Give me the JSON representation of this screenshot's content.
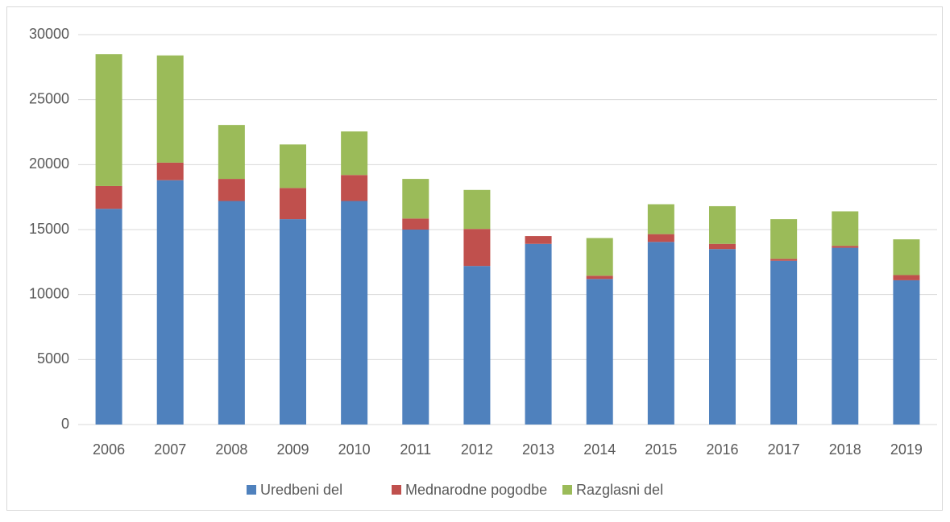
{
  "chart_data": {
    "type": "stacked_bar",
    "categories": [
      "2006",
      "2007",
      "2008",
      "2009",
      "2010",
      "2011",
      "2012",
      "2013",
      "2014",
      "2015",
      "2016",
      "2017",
      "2018",
      "2019"
    ],
    "series": [
      {
        "name": "Uredbeni del",
        "color": "#4f81bd",
        "values": [
          16600,
          18800,
          17200,
          15800,
          17200,
          15000,
          12200,
          13900,
          11200,
          14050,
          13500,
          12600,
          13600,
          11100
        ]
      },
      {
        "name": "Mednarodne pogodbe",
        "color": "#c0504d",
        "values": [
          1750,
          1350,
          1700,
          2400,
          2000,
          850,
          2850,
          600,
          250,
          600,
          400,
          150,
          150,
          400
        ]
      },
      {
        "name": "Razglasni del",
        "color": "#9bbb59",
        "values": [
          10150,
          8250,
          4150,
          3350,
          3350,
          3050,
          3000,
          0,
          2900,
          2300,
          2900,
          3050,
          2650,
          2750
        ]
      }
    ],
    "ylim": [
      0,
      30000
    ],
    "yticks": [
      0,
      5000,
      10000,
      15000,
      20000,
      25000,
      30000
    ],
    "grid": true,
    "legend": "bottom"
  }
}
